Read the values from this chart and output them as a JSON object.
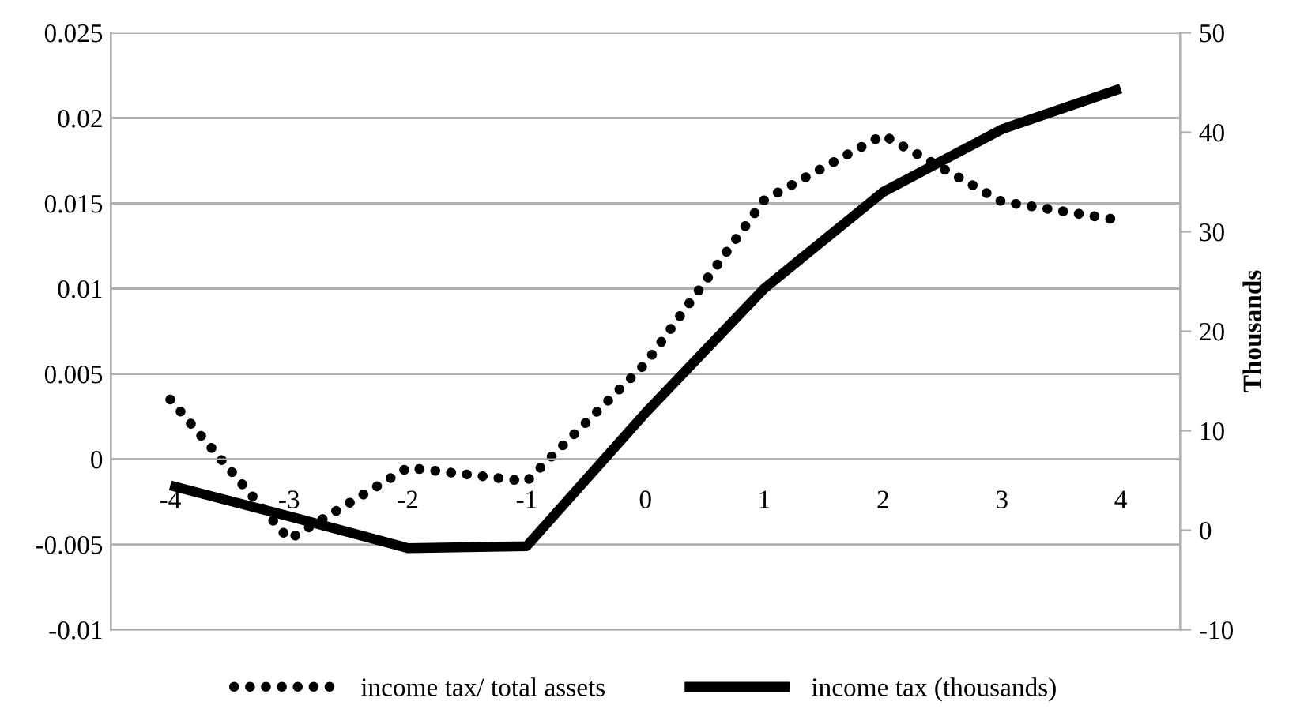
{
  "chart_data": {
    "type": "line",
    "categories": [
      "-4",
      "-3",
      "-2",
      "-1",
      "0",
      "1",
      "2",
      "3",
      "4"
    ],
    "series": [
      {
        "name": "income tax/ total assets",
        "color": "#000000",
        "line_style": "dotted",
        "values": [
          0.0035,
          -0.0047,
          -0.0005,
          -0.0013,
          0.0056,
          0.0152,
          0.019,
          0.0151,
          0.014
        ]
      },
      {
        "name": "income tax (thousands)",
        "color": "#000000",
        "line_style": "solid",
        "axis": "y2",
        "values": [
          4.5,
          1.4,
          -1.8,
          -1.6,
          11.8,
          24.3,
          34,
          40.3,
          44.4
        ]
      }
    ],
    "ylim": [
      -0.01,
      0.025
    ],
    "yticks": [
      -0.01,
      -0.005,
      0,
      0.005,
      0.01,
      0.015,
      0.02,
      0.025
    ],
    "y2lim": [
      -10,
      50
    ],
    "y2ticks": [
      -10,
      0,
      10,
      20,
      30,
      40,
      50
    ],
    "y2label": "Thousands",
    "grid": "y",
    "legend": "bottom",
    "marker": "none"
  }
}
